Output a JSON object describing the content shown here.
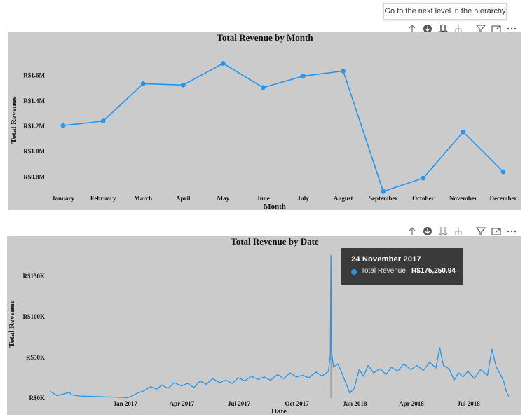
{
  "header_tooltip": "Go to the next level in the hierarchy",
  "toolbar_icons": [
    "drill-up-icon",
    "drill-down-on-icon",
    "next-level-icon",
    "expand-hierarchy-icon",
    "filter-icon",
    "focus-mode-icon",
    "more-options-icon"
  ],
  "colors": {
    "series": "#2196f3",
    "panel": "#cbcbcb",
    "tooltip_bg": "#3a3a3a"
  },
  "chart_data": [
    {
      "type": "line",
      "title": "Total Revenue by Month",
      "xlabel": "Month",
      "ylabel": "Total Revenue",
      "categories": [
        "January",
        "February",
        "March",
        "April",
        "May",
        "June",
        "July",
        "August",
        "September",
        "October",
        "November",
        "December"
      ],
      "values": [
        1.205,
        1.24,
        1.535,
        1.525,
        1.695,
        1.505,
        1.595,
        1.635,
        0.685,
        0.79,
        1.155,
        0.84
      ],
      "unit": "M",
      "ylim": [
        0.68,
        1.72
      ],
      "yticks": [
        0.8,
        1.0,
        1.2,
        1.4,
        1.6
      ],
      "ytick_labels": [
        "R$0.8M",
        "R$1.0M",
        "R$1.2M",
        "R$1.4M",
        "R$1.6M"
      ],
      "markers": true,
      "grid": false
    },
    {
      "type": "line",
      "title": "Total Revenue by Date",
      "xlabel": "Date",
      "ylabel": "Total Revenue",
      "x_range": [
        "2016-09-04",
        "2018-09-03"
      ],
      "ylim": [
        0,
        180000
      ],
      "yticks": [
        0,
        50000,
        100000,
        150000
      ],
      "ytick_labels": [
        "R$0K",
        "R$50K",
        "R$100K",
        "R$150K"
      ],
      "xtick_labels": [
        "Jan 2017",
        "Apr 2017",
        "Jul 2017",
        "Oct 2017",
        "Jan 2018",
        "Apr 2018",
        "Jul 2018"
      ],
      "xticks": [
        "2017-01-01",
        "2017-04-01",
        "2017-07-01",
        "2017-10-01",
        "2018-01-01",
        "2018-04-01",
        "2018-07-01"
      ],
      "highlight": {
        "date": "2017-11-24",
        "value": 175250.94
      },
      "points": [
        [
          "2016-09-04",
          8000
        ],
        [
          "2016-09-15",
          3000
        ],
        [
          "2016-10-04",
          7000
        ],
        [
          "2016-10-08",
          4000
        ],
        [
          "2016-10-20",
          2500
        ],
        [
          "2016-12-23",
          1000
        ],
        [
          "2017-01-05",
          500
        ],
        [
          "2017-01-10",
          2000
        ],
        [
          "2017-01-20",
          6000
        ],
        [
          "2017-01-31",
          9000
        ],
        [
          "2017-02-10",
          14000
        ],
        [
          "2017-02-20",
          11000
        ],
        [
          "2017-02-28",
          16000
        ],
        [
          "2017-03-10",
          12000
        ],
        [
          "2017-03-20",
          19000
        ],
        [
          "2017-03-31",
          15000
        ],
        [
          "2017-04-10",
          18000
        ],
        [
          "2017-04-20",
          13000
        ],
        [
          "2017-04-30",
          21000
        ],
        [
          "2017-05-10",
          17000
        ],
        [
          "2017-05-20",
          24000
        ],
        [
          "2017-05-31",
          19000
        ],
        [
          "2017-06-10",
          22000
        ],
        [
          "2017-06-20",
          18000
        ],
        [
          "2017-06-30",
          25000
        ],
        [
          "2017-07-10",
          21000
        ],
        [
          "2017-07-20",
          27000
        ],
        [
          "2017-07-31",
          23000
        ],
        [
          "2017-08-10",
          26000
        ],
        [
          "2017-08-20",
          22000
        ],
        [
          "2017-08-31",
          29000
        ],
        [
          "2017-09-10",
          24000
        ],
        [
          "2017-09-20",
          31000
        ],
        [
          "2017-09-30",
          26000
        ],
        [
          "2017-10-10",
          28000
        ],
        [
          "2017-10-20",
          25000
        ],
        [
          "2017-10-31",
          32000
        ],
        [
          "2017-11-10",
          27000
        ],
        [
          "2017-11-20",
          33000
        ],
        [
          "2017-11-23",
          52000
        ],
        [
          "2017-11-24",
          175250.94
        ],
        [
          "2017-11-25",
          58000
        ],
        [
          "2017-11-28",
          38000
        ],
        [
          "2017-12-05",
          42000
        ],
        [
          "2017-12-12",
          30000
        ],
        [
          "2017-12-18",
          18000
        ],
        [
          "2017-12-24",
          6000
        ],
        [
          "2017-12-31",
          12000
        ],
        [
          "2018-01-08",
          35000
        ],
        [
          "2018-01-15",
          27000
        ],
        [
          "2018-01-22",
          40000
        ],
        [
          "2018-01-31",
          31000
        ],
        [
          "2018-02-10",
          36000
        ],
        [
          "2018-02-20",
          29000
        ],
        [
          "2018-02-28",
          38000
        ],
        [
          "2018-03-10",
          33000
        ],
        [
          "2018-03-20",
          42000
        ],
        [
          "2018-03-31",
          35000
        ],
        [
          "2018-04-10",
          40000
        ],
        [
          "2018-04-20",
          34000
        ],
        [
          "2018-04-30",
          44000
        ],
        [
          "2018-05-10",
          37000
        ],
        [
          "2018-05-16",
          62000
        ],
        [
          "2018-05-22",
          40000
        ],
        [
          "2018-05-31",
          36000
        ],
        [
          "2018-06-08",
          22000
        ],
        [
          "2018-06-15",
          31000
        ],
        [
          "2018-06-22",
          26000
        ],
        [
          "2018-06-30",
          33000
        ],
        [
          "2018-07-10",
          24000
        ],
        [
          "2018-07-20",
          35000
        ],
        [
          "2018-07-31",
          28000
        ],
        [
          "2018-08-07",
          60000
        ],
        [
          "2018-08-14",
          38000
        ],
        [
          "2018-08-20",
          30000
        ],
        [
          "2018-08-26",
          20000
        ],
        [
          "2018-08-30",
          8000
        ],
        [
          "2018-09-03",
          2000
        ]
      ],
      "grid": false
    }
  ],
  "tooltip": {
    "date": "24 November 2017",
    "series_label": "Total Revenue",
    "value_label": "R$175,250.94"
  }
}
